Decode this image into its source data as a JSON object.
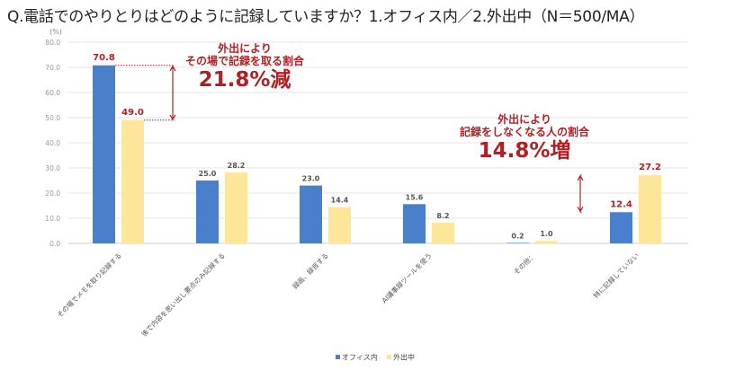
{
  "chart_data": {
    "type": "bar",
    "title": "Q.電話でのやりとりはどのように記録していますか？1.オフィス内／2.外出中（N＝500/MA）",
    "ylabel": "(%)",
    "xlabel": "",
    "ylim": [
      0,
      80
    ],
    "yticks": [
      "0.0",
      "10.0",
      "20.0",
      "30.0",
      "40.0",
      "50.0",
      "60.0",
      "70.0",
      "80.0"
    ],
    "grid": true,
    "legend": "bottom",
    "categories": [
      "その場でメモを取り記録する",
      "後で内容を思い出し要点のみ記録する",
      "録画、録音する",
      "AI議事録ツールを使う",
      "その他：",
      "特に記録していない"
    ],
    "series": [
      {
        "name": "オフィス内",
        "color": "#4a7fcc",
        "values": [
          70.8,
          25.0,
          23.0,
          15.6,
          0.2,
          12.4
        ],
        "labels": [
          "70.8",
          "25.0",
          "23.0",
          "15.6",
          "0.2",
          "12.4"
        ]
      },
      {
        "name": "外出中",
        "color": "#fde69a",
        "values": [
          49.0,
          28.2,
          14.4,
          8.2,
          1.0,
          27.2
        ],
        "labels": [
          "49.0",
          "28.2",
          "14.4",
          "8.2",
          "1.0",
          "27.2"
        ]
      }
    ],
    "highlight_color": "#b01f24",
    "highlight_categories": [
      0,
      5
    ],
    "annotations": [
      {
        "line1": "外出により",
        "line2": "その場で記録を取る割合",
        "big": "21.8%減"
      },
      {
        "line1": "外出により",
        "line2": "記録をしなくなる人の割合",
        "big": "14.8%増"
      }
    ]
  }
}
